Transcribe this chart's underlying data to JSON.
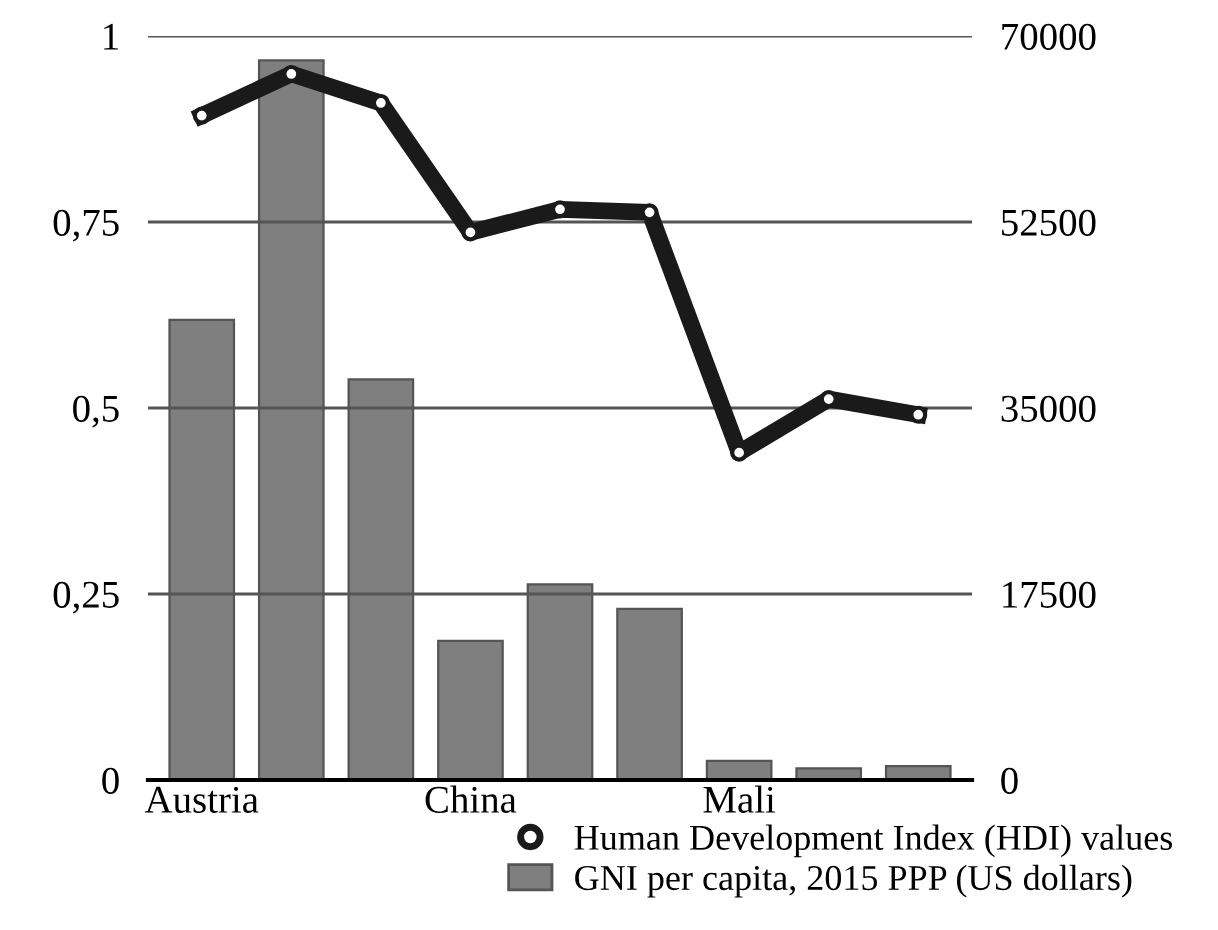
{
  "chart_data": {
    "type": "bar",
    "categories": [
      "Austria",
      null,
      null,
      "China",
      null,
      null,
      "Mali",
      null,
      null
    ],
    "series": [
      {
        "name": "GNI per capita, 2015 PPP (US dollars)",
        "axis": "y2",
        "color": "#7f7f7f",
        "values": [
          43300,
          67700,
          37700,
          13100,
          18400,
          16100,
          1800,
          1100,
          1300
        ]
      },
      {
        "name": "Human Development Index (HDI) values",
        "type": "line",
        "color": "#1a1a1a",
        "marker": "circle",
        "values": [
          0.893,
          0.949,
          0.91,
          0.736,
          0.767,
          0.763,
          0.44,
          0.512,
          0.491
        ]
      }
    ],
    "ylim": [
      0,
      1
    ],
    "yticks": [
      0,
      {
        "value": 0.25,
        "label": "0,25"
      },
      {
        "value": 0.5,
        "label": "0,5"
      },
      {
        "value": 0.75,
        "label": "0,75"
      },
      1
    ],
    "y2lim": [
      0,
      70000
    ],
    "y2ticks": [
      0,
      17500,
      35000,
      52500,
      70000
    ],
    "grid": "y",
    "legend": "bottom right"
  }
}
